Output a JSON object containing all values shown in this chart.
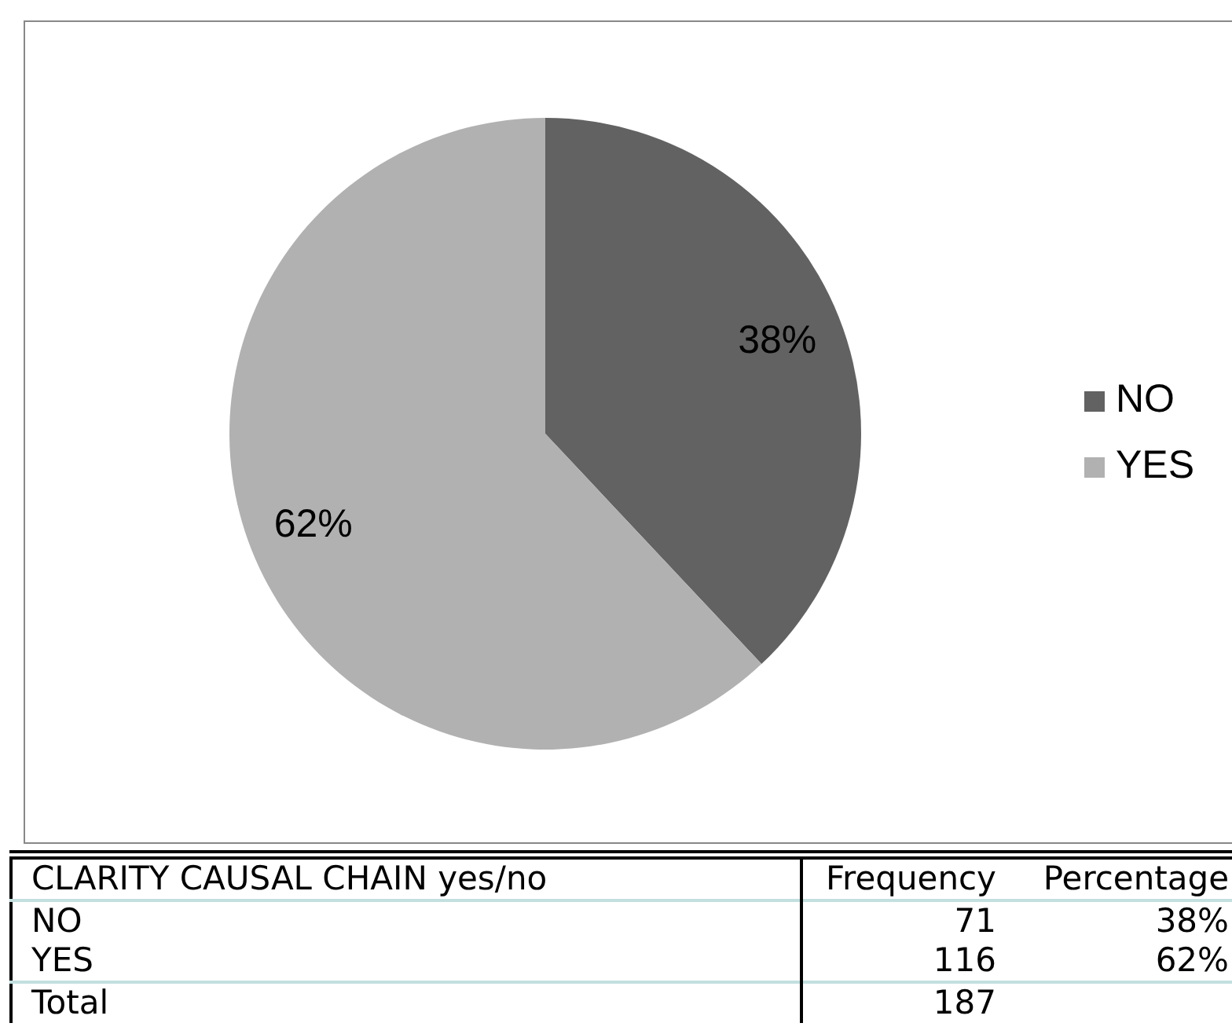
{
  "chart_data": {
    "type": "pie",
    "categories": [
      "NO",
      "YES"
    ],
    "values": [
      38,
      62
    ],
    "colors": [
      "#626262",
      "#b1b1b1"
    ],
    "value_labels": [
      "38%",
      "62%"
    ],
    "legend": "right",
    "annotations": [
      "CLARITY CAUSAL CHAIN yes/no",
      "Frequency",
      "Percentage",
      "71",
      "116",
      "Total",
      "187"
    ]
  }
}
